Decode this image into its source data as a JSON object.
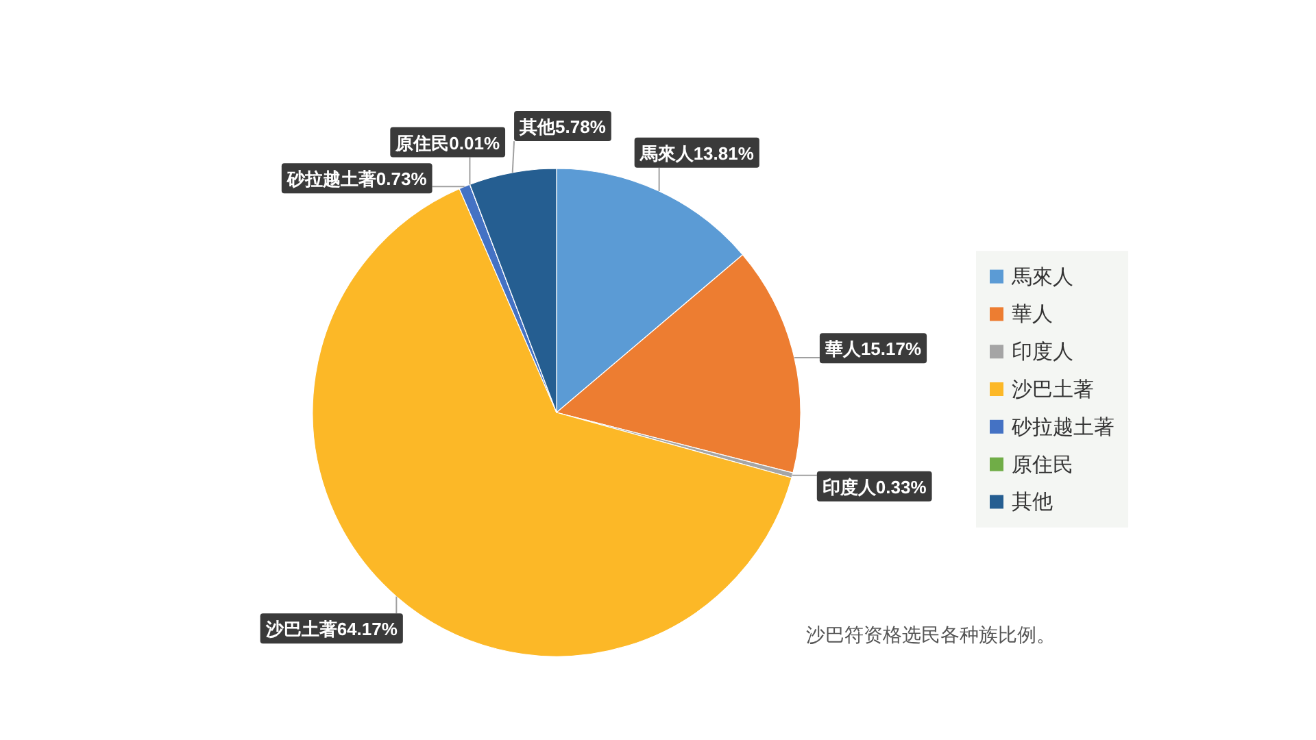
{
  "chart_data": {
    "type": "pie",
    "categories": [
      "馬來人",
      "華人",
      "印度人",
      "沙巴土著",
      "砂拉越土著",
      "原住民",
      "其他"
    ],
    "values": [
      13.81,
      15.17,
      0.33,
      64.17,
      0.73,
      0.01,
      5.78
    ],
    "colors": [
      "#5b9bd5",
      "#ed7d31",
      "#a5a5a5",
      "#fcb827",
      "#4472c4",
      "#70ad47",
      "#255e91"
    ],
    "value_labels": [
      "馬來人13.81%",
      "華人15.17%",
      "印度人0.33%",
      "沙巴土著64.17%",
      "砂拉越土著0.73%",
      "原住民0.01%",
      "其他5.78%"
    ],
    "legend": "right",
    "annotations": [
      "沙巴符资格选民各种族比例。"
    ]
  }
}
